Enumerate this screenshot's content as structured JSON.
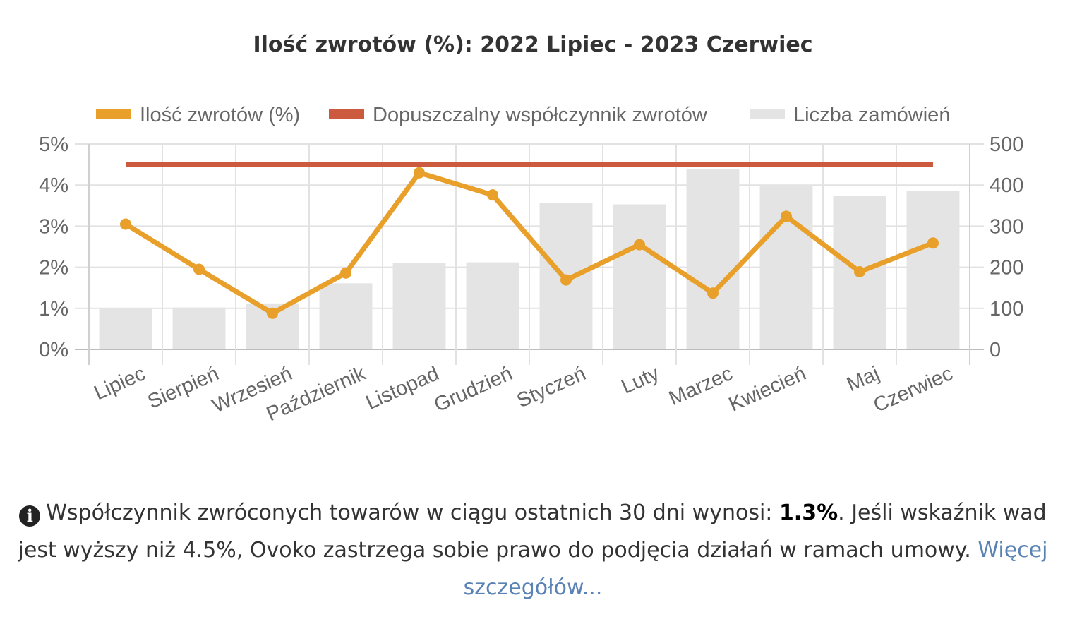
{
  "chart_data": {
    "type": "bar",
    "title": "Ilość zwrotów (%): 2022 Lipiec - 2023 Czerwiec",
    "categories": [
      "Lipiec",
      "Sierpień",
      "Wrzesień",
      "Październik",
      "Listopad",
      "Grudzień",
      "Styczeń",
      "Luty",
      "Marzec",
      "Kwiecień",
      "Maj",
      "Czerwiec"
    ],
    "series": [
      {
        "name": "Ilość zwrotów (%)",
        "type": "line",
        "axis": "left",
        "color": "#e8a02a",
        "values": [
          3.05,
          1.95,
          0.88,
          1.86,
          4.3,
          3.76,
          1.69,
          2.55,
          1.37,
          3.24,
          1.89,
          2.59
        ]
      },
      {
        "name": "Dopuszczalny współczynnik zwrotów",
        "type": "line",
        "axis": "left",
        "color": "#cc5a3e",
        "values": [
          4.5,
          4.5,
          4.5,
          4.5,
          4.5,
          4.5,
          4.5,
          4.5,
          4.5,
          4.5,
          4.5,
          4.5
        ]
      },
      {
        "name": "Liczba zamówień",
        "type": "bar",
        "axis": "right",
        "color": "#e4e4e4",
        "values": [
          100,
          102,
          112,
          161,
          210,
          212,
          357,
          353,
          438,
          400,
          373,
          386
        ]
      }
    ],
    "y_left": {
      "min": 0,
      "max": 5,
      "ticks": [
        "0%",
        "1%",
        "2%",
        "3%",
        "4%",
        "5%"
      ]
    },
    "y_right": {
      "min": 0,
      "max": 500,
      "ticks": [
        "0",
        "100",
        "200",
        "300",
        "400",
        "500"
      ]
    },
    "grid": true,
    "legend": "top"
  },
  "info": {
    "icon": "info-icon",
    "text_before": "Współczynnik zwróconych towarów w ciągu ostatnich 30 dni wynosi: ",
    "rate": "1.3%",
    "text_after": ". Jeśli wskaźnik wad jest wyższy niż 4.5%, Ovoko zastrzega sobie prawo do podjęcia działań w ramach umowy. ",
    "link": "Więcej szczegółów..."
  }
}
